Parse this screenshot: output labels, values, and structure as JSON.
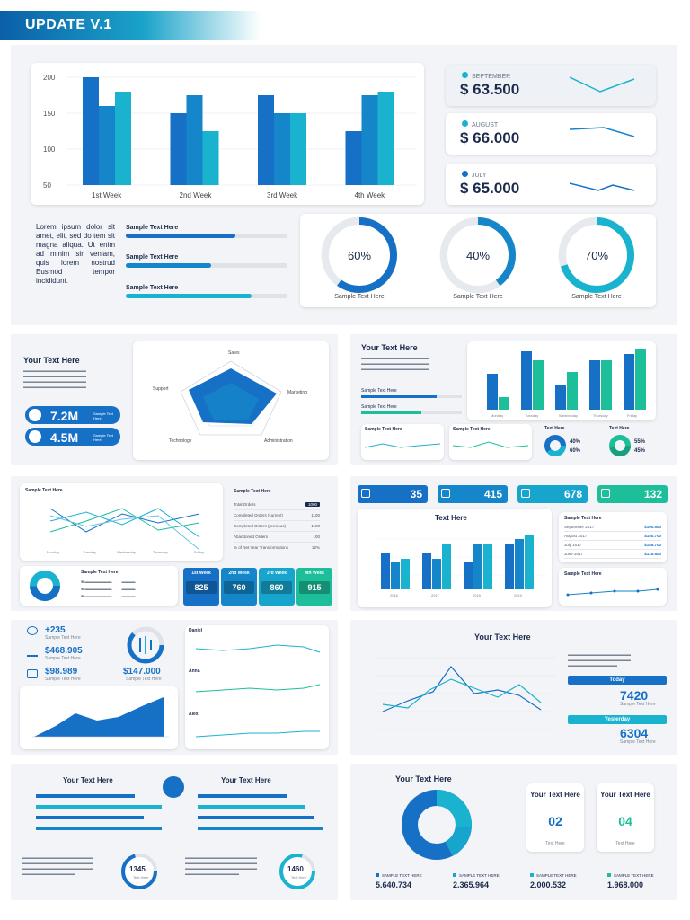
{
  "banner": {
    "title": "UPDATE V.1"
  },
  "top": {
    "chart_data": {
      "type": "bar",
      "categories": [
        "1st Week",
        "2nd Week",
        "3rd Week",
        "4th Week"
      ],
      "series": [
        {
          "name": "A",
          "values": [
            200,
            150,
            175,
            125
          ]
        },
        {
          "name": "B",
          "values": [
            160,
            175,
            150,
            175
          ]
        },
        {
          "name": "C",
          "values": [
            180,
            125,
            150,
            180
          ]
        }
      ],
      "yticks": [
        "200",
        "150",
        "100",
        "50"
      ],
      "ylim": [
        50,
        200
      ]
    },
    "months": [
      {
        "name": "SEPTEMBER",
        "value": "$ 63.500"
      },
      {
        "name": "AUGUST",
        "value": "$ 66.000"
      },
      {
        "name": "JULY",
        "value": "$ 65.000"
      }
    ],
    "lorem": "Lorem ipsum dolor sit amet, elit, sed do tem sit magna aliqua. Ut enim ad minim sir veniam, quis lorem nostrud Eusmod tempor incididunt.",
    "bars": [
      {
        "label": "Sample Text Here",
        "value": 0.68
      },
      {
        "label": "Sample Text Here",
        "value": 0.53
      },
      {
        "label": "Sample Text Here",
        "value": 0.78
      }
    ],
    "donuts": [
      {
        "pct": "60%",
        "value": 60,
        "label": "Sample Text Here"
      },
      {
        "pct": "40%",
        "value": 40,
        "label": "Sample Text Here"
      },
      {
        "pct": "70%",
        "value": 70,
        "label": "Sample Text Here"
      }
    ]
  },
  "p2": {
    "title": "Your Text Here",
    "stat1": "7.2M",
    "stat2": "4.5M",
    "pill_label": "Sample Text Here",
    "radar_labels": [
      "Sales",
      "Marketing",
      "Administration",
      "Technology",
      "Support"
    ]
  },
  "p3": {
    "title": "Your Text Here",
    "legend1": "Sample Text Here",
    "legend2": "Sample Text Here",
    "mini1": "Sample Text Here",
    "mini2": "Sample Text Here",
    "pie1": "Text Here",
    "pie2": "Text Here",
    "pct": [
      "40%",
      "60%",
      "55%",
      "45%"
    ],
    "days": [
      "Monday",
      "Tuesday",
      "Wednesday",
      "Thursday",
      "Friday"
    ]
  },
  "p4": {
    "title": "Sample Text Here",
    "right_title": "Sample Text Here",
    "rows": [
      {
        "label": "Total Orders",
        "value": "1000"
      },
      {
        "label": "Completed Orders (current)",
        "value": "1100"
      },
      {
        "label": "Completed Orders (previous)",
        "value": "1100"
      },
      {
        "label": "Abandoned Orders",
        "value": "100"
      },
      {
        "label": "% of Net Year Transformations",
        "value": "12%"
      }
    ],
    "donut_title": "Sample Text Here",
    "weeks": [
      {
        "label": "1st Week",
        "value": "825",
        "color": "#1570c6"
      },
      {
        "label": "2nd Week",
        "value": "760",
        "color": "#1486c9"
      },
      {
        "label": "3rd Week",
        "value": "860",
        "color": "#17a4cd"
      },
      {
        "label": "4th Week",
        "value": "915",
        "color": "#1dbf9a"
      }
    ]
  },
  "p5": {
    "tiles": [
      {
        "value": "35",
        "color": "#1570c6"
      },
      {
        "value": "415",
        "color": "#1486c9"
      },
      {
        "value": "678",
        "color": "#17a4cd"
      },
      {
        "value": "132",
        "color": "#1dbf9a"
      }
    ],
    "chart_title": "Text Here",
    "right_title": "Sample Text Here",
    "list": [
      {
        "label": "September 2017",
        "value": "$100.500"
      },
      {
        "label": "August 2017",
        "value": "$150.700"
      },
      {
        "label": "July 2017",
        "value": "$155.700"
      },
      {
        "label": "June 2017",
        "value": "$125.500"
      }
    ],
    "mini_title": "Sample Text Here",
    "years": [
      "2016",
      "2017",
      "2018",
      "2019"
    ]
  },
  "p6": {
    "s1": "+235",
    "s2": "$468.905",
    "s3": "$98.989",
    "s4": "$147.000",
    "names": [
      "Daniel",
      "Anna",
      "Alex"
    ],
    "sub": "Sample Text Here"
  },
  "p7": {
    "title": "Your Text Here",
    "today_label": "Today",
    "today_value": "7420",
    "yesterday_label": "Yesterday",
    "yesterday_value": "6304",
    "sub": "Sample Text Here"
  },
  "p8": {
    "title1": "Your Text Here",
    "title2": "Your Text Here",
    "c1": "1345",
    "c2": "1460",
    "cap": "Text Here"
  },
  "p9": {
    "title": "Your Text Here",
    "card1_title": "Your Text Here",
    "card1_value": "02",
    "card2_title": "Your Text Here",
    "card2_value": "04",
    "card_caption": "Text Here",
    "stats": [
      {
        "label": "SAMPLE TEXT HERE",
        "value": "5.640.734",
        "color": "#1570c6"
      },
      {
        "label": "SAMPLE TEXT HERE",
        "value": "2.365.964",
        "color": "#17a4cd"
      },
      {
        "label": "SAMPLE TEXT HERE",
        "value": "2.000.532",
        "color": "#1ab3cf"
      },
      {
        "label": "SAMPLE TEXT HERE",
        "value": "1.968.000",
        "color": "#1dbf9a"
      }
    ]
  }
}
